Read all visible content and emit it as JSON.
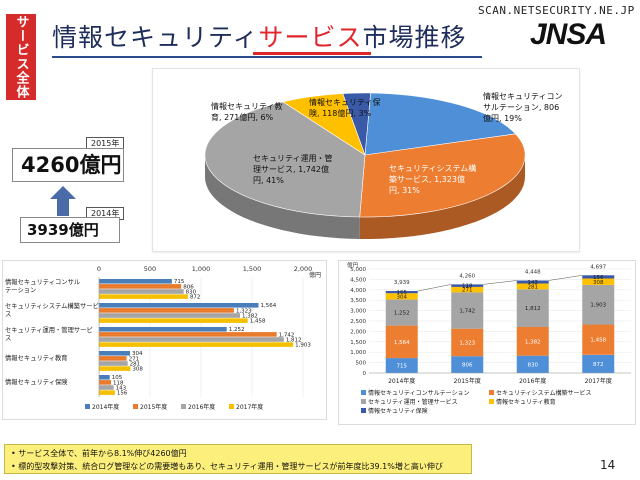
{
  "header": {
    "side_tab": "サービス全体",
    "title_pre": "情報セキュリティ",
    "title_highlight": "サービス",
    "title_post": "市場推移",
    "source": "SCAN.NETSECURITY.NE.JP",
    "logo": "JNSA",
    "page_number": "14"
  },
  "totals": {
    "year_2015": "2015年",
    "value_2015": "4260億円",
    "year_2014": "2014年",
    "value_2014": "3939億円"
  },
  "colors": {
    "series_2014": "#4a7ebb",
    "series_2015": "#e87b2c",
    "series_2016": "#a5a5a5",
    "series_2017": "#f5c000",
    "consulting": "#4f8fd8",
    "integration": "#ed7d31",
    "operation": "#a5a5a5",
    "education": "#ffc000",
    "insurance": "#3a5aa8",
    "title_red": "#e0262d",
    "note_bg": "#fcef7b"
  },
  "notes": [
    "• サービス全体で、前年から8.1%伸び4260億円",
    "• 標的型攻撃対策、統合ログ管理などの需要増もあり、セキュリティ運用・管理サービスが前年度比39.1%増と高い伸び"
  ],
  "chart_data": [
    {
      "type": "pie",
      "slices": [
        {
          "label": "情報セキュリティコンサルテーション",
          "value": 806,
          "pct": "19%",
          "text_lines": [
            "情報セキュリティコン",
            "サルテーション, 806",
            "億円, 19%"
          ]
        },
        {
          "label": "セキュリティシステム構築サービス",
          "value": 1323,
          "pct": "31%",
          "text_lines": [
            "セキュリティシステム構",
            "築サービス, 1,323億",
            "円, 31%"
          ]
        },
        {
          "label": "セキュリティ運用・管理サービス",
          "value": 1742,
          "pct": "41%",
          "text_lines": [
            "セキュリティ運用・管",
            "理サービス, 1,742億",
            "円, 41%"
          ]
        },
        {
          "label": "情報セキュリティ教育",
          "value": 271,
          "pct": "6%",
          "text_lines": [
            "情報セキュリティ教",
            "育, 271億円, 6%"
          ]
        },
        {
          "label": "情報セキュリティ保険",
          "value": 118,
          "pct": "3%",
          "text_lines": [
            "情報セキュリティ保",
            "険, 118億円, 3%"
          ]
        }
      ]
    },
    {
      "type": "bar",
      "orientation": "horizontal",
      "categories": [
        [
          "情報セキュリティコンサル",
          "テーション"
        ],
        [
          "セキュリティシステム構築サービ",
          "ス"
        ],
        [
          "セキュリティ運用・管理サービ",
          "ス"
        ],
        [
          "情報セキュリティ教育"
        ],
        [
          "情報セキュリティ保険"
        ]
      ],
      "series": [
        {
          "name": "2014年度",
          "values": [
            715,
            1564,
            1252,
            304,
            105
          ]
        },
        {
          "name": "2015年度",
          "values": [
            806,
            1323,
            1742,
            271,
            118
          ]
        },
        {
          "name": "2016年度",
          "values": [
            830,
            1382,
            1812,
            281,
            143
          ]
        },
        {
          "name": "2017年度",
          "values": [
            872,
            1458,
            1903,
            308,
            156
          ]
        }
      ],
      "value_labels": [
        [
          "715",
          "806",
          "830",
          "872"
        ],
        [
          "1,564",
          "1,323",
          "1,382",
          "1,458"
        ],
        [
          "1,252",
          "1,742",
          "1,812",
          "1,903"
        ],
        [
          "304",
          "271",
          "281",
          "308"
        ],
        [
          "105",
          "118",
          "143",
          "156"
        ]
      ],
      "xticks": [
        "0",
        "500",
        "1,000",
        "1,500",
        "2,000"
      ],
      "xlim": [
        0,
        2000
      ],
      "unit": "億円",
      "legend_position": "bottom"
    },
    {
      "type": "bar",
      "stacked": true,
      "categories": [
        "2014年度",
        "2015年度",
        "2016年度",
        "2017年度"
      ],
      "series": [
        {
          "name": "情報セキュリティコンサルテーション",
          "values": [
            715,
            806,
            830,
            872
          ],
          "labels": [
            "715",
            "806",
            "830",
            "872"
          ]
        },
        {
          "name": "セキュリティシステム構築サービス",
          "values": [
            1564,
            1323,
            1382,
            1458
          ],
          "labels": [
            "1,564",
            "1,323",
            "1,382",
            "1,458"
          ]
        },
        {
          "name": "セキュリティ運用・管理サービス",
          "values": [
            1252,
            1742,
            1812,
            1903
          ],
          "labels": [
            "1,252",
            "1,742",
            "1,812",
            "1,903"
          ]
        },
        {
          "name": "情報セキュリティ教育",
          "values": [
            304,
            271,
            281,
            308
          ],
          "labels": [
            "304",
            "271",
            "281",
            "308"
          ]
        },
        {
          "name": "情報セキュリティ保険",
          "values": [
            105,
            118,
            143,
            156
          ],
          "labels": [
            "105",
            "118",
            "143",
            "156"
          ]
        }
      ],
      "totals": [
        "3,939",
        "4,260",
        "4,448",
        "4,697"
      ],
      "yticks": [
        "0",
        "500",
        "1,000",
        "1,500",
        "2,000",
        "2,500",
        "3,000",
        "3,500",
        "4,000",
        "4,500",
        "5,000"
      ],
      "ylim": [
        0,
        5000
      ],
      "unit": "億円",
      "legend_position": "bottom"
    }
  ]
}
